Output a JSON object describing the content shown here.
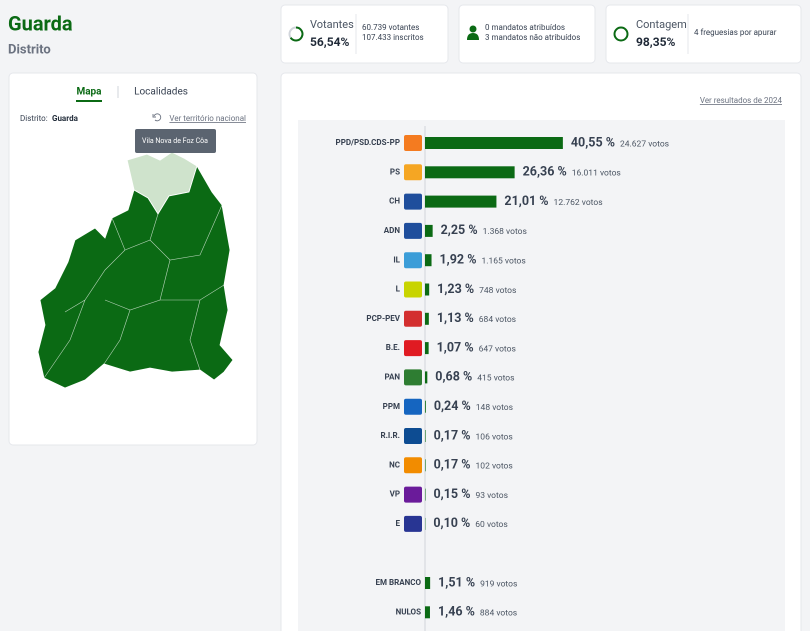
{
  "header": {
    "title": "Guarda",
    "subtitle": "Distrito"
  },
  "stats": {
    "votantes": {
      "label": "Votantes",
      "value": "56,54%",
      "details": [
        "60.739 votantes",
        "107.433 inscritos"
      ]
    },
    "mandatos": {
      "details": [
        "0 mandatos atribuídos",
        "3 mandatos não atribuídos"
      ]
    },
    "contagem": {
      "label": "Contagem",
      "value": "98,35%",
      "details": [
        "4 freguesias por apurar"
      ]
    }
  },
  "map_panel": {
    "tabs": [
      "Mapa",
      "Localidades"
    ],
    "district_label": "Distrito:",
    "district": "Guarda",
    "link": "Ver território nacional",
    "tooltip": "Vila Nova de Foz Côa"
  },
  "results_link": "Ver resultados de 2024",
  "chart_data": {
    "type": "bar",
    "orientation": "horizontal",
    "color": "#0b6a14",
    "categories": [
      "PPD/PSD.CDS-PP",
      "PS",
      "CH",
      "ADN",
      "IL",
      "L",
      "PCP-PEV",
      "B.E.",
      "PAN",
      "PPM",
      "R.I.R.",
      "NC",
      "VP",
      "E",
      "EM BRANCO",
      "NULOS"
    ],
    "values": [
      40.55,
      26.36,
      21.01,
      2.25,
      1.92,
      1.23,
      1.13,
      1.07,
      0.68,
      0.24,
      0.17,
      0.17,
      0.15,
      0.1,
      1.51,
      1.46
    ],
    "value_labels": [
      "40,55 %",
      "26,36 %",
      "21,01 %",
      "2,25 %",
      "1,92 %",
      "1,23 %",
      "1,13 %",
      "1,07 %",
      "0,68 %",
      "0,24 %",
      "0,17 %",
      "0,17 %",
      "0,15 %",
      "0,10 %",
      "1,51 %",
      "1,46 %"
    ],
    "votes": [
      "24.627 votos",
      "16.011 votos",
      "12.762 votos",
      "1.368 votos",
      "1.165 votos",
      "748 votos",
      "684 votos",
      "647 votos",
      "415 votos",
      "148 votos",
      "106 votos",
      "102 votos",
      "93 votos",
      "60 votos",
      "919 votos",
      "884 votos"
    ]
  }
}
